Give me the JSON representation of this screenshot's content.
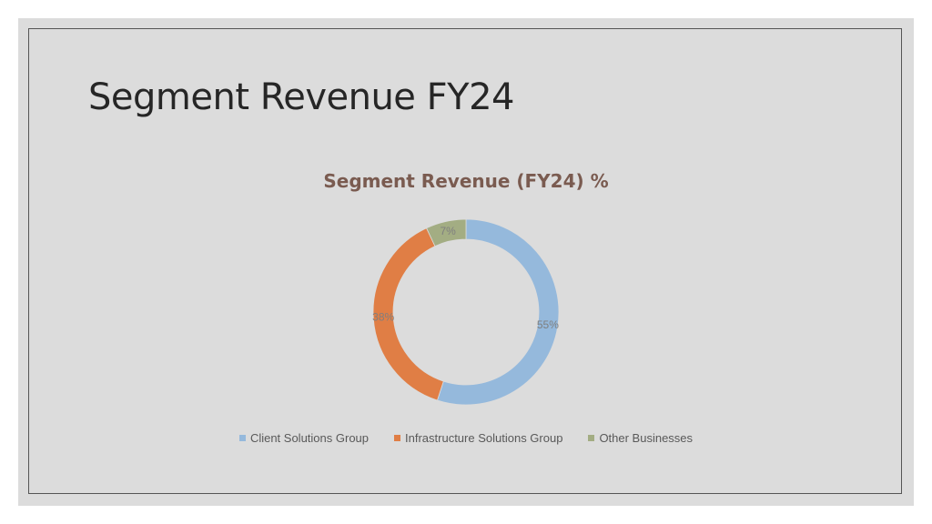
{
  "slide": {
    "title": "Segment Revenue FY24"
  },
  "colors": {
    "client": "#95b9dc",
    "infrastructure": "#e07e45",
    "other": "#a3ad83",
    "title": "#7a5b50"
  },
  "chart_data": {
    "type": "pie",
    "style": "donut",
    "title": "Segment Revenue (FY24) %",
    "categories": [
      "Client Solutions Group",
      "Infrastructure Solutions Group",
      "Other Businesses"
    ],
    "values": [
      55,
      38,
      7
    ],
    "labels": [
      "55%",
      "38%",
      "7%"
    ],
    "colors": [
      "#95b9dc",
      "#e07e45",
      "#a3ad83"
    ],
    "legend_position": "bottom"
  }
}
